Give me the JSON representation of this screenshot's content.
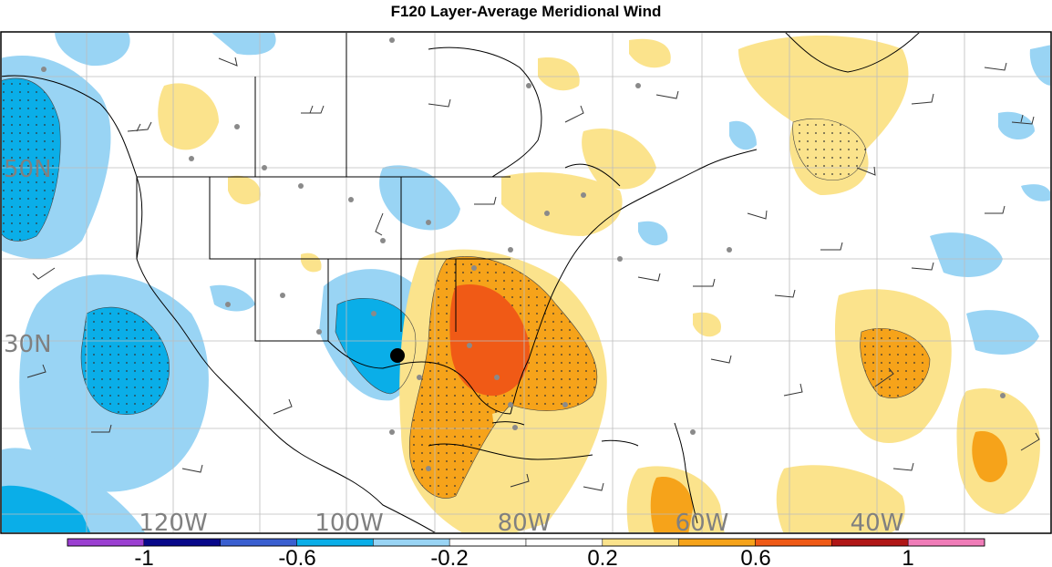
{
  "title": "F120 Layer-Average Meridional Wind",
  "map": {
    "lat_labels": [
      "50N",
      "30N"
    ],
    "lon_labels": [
      "120W",
      "100W",
      "80W",
      "60W",
      "40W"
    ],
    "marker": "storm-center-dot",
    "colors": {
      "frame": "#000000",
      "grid": "#bdbdbd",
      "coast": "#000000",
      "station_dot": "#8a8a8a",
      "barb": "#333333"
    }
  },
  "colorbar": {
    "tick_labels": [
      "-1",
      "-0.6",
      "-0.2",
      "0.2",
      "0.6",
      "1"
    ],
    "segments": [
      "#9b3fd1",
      "#08088a",
      "#3a5fd0",
      "#0aaee8",
      "#99d4f4",
      "#ffffff",
      "#ffffff",
      "#fbe38c",
      "#f6a31a",
      "#f05a16",
      "#b01616",
      "#f07cb8"
    ]
  }
}
